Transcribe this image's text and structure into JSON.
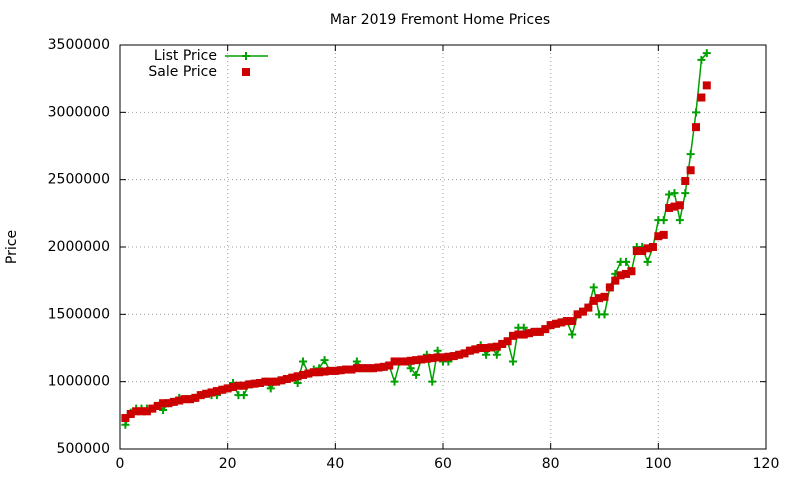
{
  "chart_data": {
    "type": "line",
    "title": "Mar 2019 Fremont Home Prices",
    "y_label": "Price",
    "x": [
      1,
      2,
      3,
      4,
      5,
      6,
      7,
      8,
      9,
      10,
      11,
      12,
      13,
      14,
      15,
      16,
      17,
      18,
      19,
      20,
      21,
      22,
      23,
      24,
      25,
      26,
      27,
      28,
      29,
      30,
      31,
      32,
      33,
      34,
      35,
      36,
      37,
      38,
      39,
      40,
      41,
      42,
      43,
      44,
      45,
      46,
      47,
      48,
      49,
      50,
      51,
      52,
      53,
      54,
      55,
      56,
      57,
      58,
      59,
      60,
      61,
      62,
      63,
      64,
      65,
      66,
      67,
      68,
      69,
      70,
      71,
      72,
      73,
      74,
      75,
      76,
      77,
      78,
      79,
      80,
      81,
      82,
      83,
      84,
      85,
      86,
      87,
      88,
      89,
      90,
      91,
      92,
      93,
      94,
      95,
      96,
      97,
      98,
      99,
      100,
      101,
      102,
      103,
      104,
      105,
      106,
      107,
      108,
      109
    ],
    "series": [
      {
        "name": "List Price",
        "color": "#00a000",
        "style": "linespoints",
        "values": [
          680000,
          770000,
          800000,
          800000,
          800000,
          800000,
          820000,
          790000,
          840000,
          850000,
          880000,
          870000,
          870000,
          880000,
          900000,
          910000,
          900000,
          900000,
          940000,
          950000,
          990000,
          900000,
          900000,
          980000,
          985000,
          990000,
          1000000,
          950000,
          1000000,
          1010000,
          1020000,
          1030000,
          990000,
          1150000,
          1060000,
          1090000,
          1100000,
          1160000,
          1080000,
          1080000,
          1085000,
          1090000,
          1090000,
          1150000,
          1100000,
          1100000,
          1100000,
          1105000,
          1110000,
          1120000,
          1000000,
          1150000,
          1150000,
          1100000,
          1050000,
          1165000,
          1200000,
          1000000,
          1230000,
          1150000,
          1150000,
          1190000,
          1200000,
          1210000,
          1230000,
          1240000,
          1270000,
          1200000,
          1255000,
          1200000,
          1280000,
          1300000,
          1150000,
          1400000,
          1400000,
          1360000,
          1370000,
          1370000,
          1390000,
          1420000,
          1430000,
          1440000,
          1450000,
          1350000,
          1500000,
          1520000,
          1550000,
          1700000,
          1500000,
          1500000,
          1700000,
          1800000,
          1890000,
          1890000,
          1820000,
          2000000,
          2000000,
          1890000,
          2000000,
          2200000,
          2200000,
          2390000,
          2400000,
          2200000,
          2400000,
          2690000,
          3000000,
          3390000,
          3440000
        ]
      },
      {
        "name": "Sale Price",
        "color": "#cc0000",
        "style": "points",
        "values": [
          730000,
          760000,
          780000,
          780000,
          780000,
          800000,
          820000,
          840000,
          840000,
          850000,
          860000,
          870000,
          870000,
          880000,
          900000,
          910000,
          920000,
          930000,
          940000,
          950000,
          960000,
          970000,
          970000,
          980000,
          985000,
          990000,
          1000000,
          1000000,
          1000000,
          1010000,
          1020000,
          1030000,
          1040000,
          1050000,
          1060000,
          1070000,
          1070000,
          1075000,
          1080000,
          1080000,
          1085000,
          1090000,
          1090000,
          1100000,
          1100000,
          1100000,
          1100000,
          1105000,
          1110000,
          1120000,
          1150000,
          1150000,
          1150000,
          1155000,
          1160000,
          1165000,
          1170000,
          1175000,
          1180000,
          1180000,
          1185000,
          1190000,
          1200000,
          1210000,
          1230000,
          1240000,
          1250000,
          1250000,
          1255000,
          1260000,
          1280000,
          1300000,
          1340000,
          1350000,
          1350000,
          1360000,
          1370000,
          1370000,
          1390000,
          1420000,
          1430000,
          1440000,
          1450000,
          1450000,
          1500000,
          1520000,
          1550000,
          1600000,
          1620000,
          1630000,
          1700000,
          1750000,
          1790000,
          1800000,
          1820000,
          1970000,
          1970000,
          1990000,
          2000000,
          2080000,
          2090000,
          2290000,
          2300000,
          2310000,
          2490000,
          2570000,
          2890000,
          3110000,
          3200000
        ]
      }
    ],
    "xlim": [
      0,
      120
    ],
    "xticks": [
      0,
      20,
      40,
      60,
      80,
      100,
      120
    ],
    "ylim": [
      500000,
      3500000
    ],
    "yticks": [
      500000,
      1000000,
      1500000,
      2000000,
      2500000,
      3000000,
      3500000
    ],
    "grid": true,
    "legend": "top-left"
  }
}
